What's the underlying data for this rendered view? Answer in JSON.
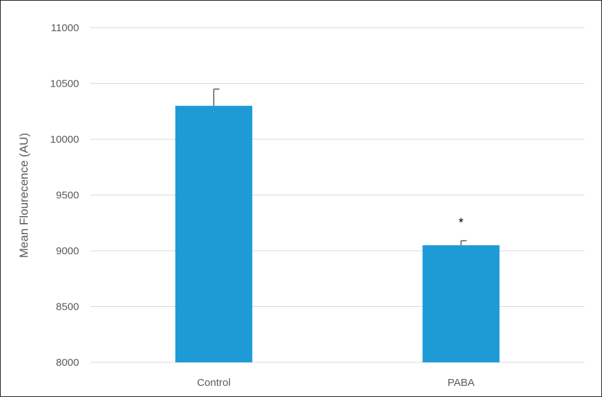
{
  "chart_data": {
    "type": "bar",
    "title": "",
    "xlabel": "",
    "ylabel": "Mean Flourecence (AU)",
    "ylim": [
      8000,
      11000
    ],
    "yticks": [
      8000,
      8500,
      9000,
      9500,
      10000,
      10500,
      11000
    ],
    "categories": [
      "Control",
      "PABA"
    ],
    "values": [
      10300,
      9050
    ],
    "error_upper": [
      150,
      40
    ],
    "annotations": [
      "",
      "*"
    ],
    "grid": "horizontal",
    "legend": "none",
    "colors": {
      "bar": "#1e9bd7",
      "grid": "#d9d9d9",
      "error_bar": "#595959",
      "text": "#595959"
    }
  }
}
